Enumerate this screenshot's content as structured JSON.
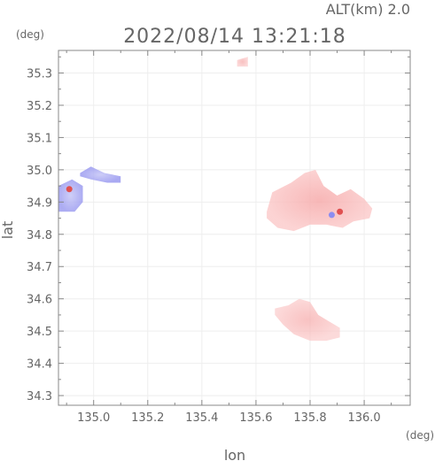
{
  "chart_data": {
    "type": "heatmap",
    "title": "2022/08/14 13:21:18",
    "annotation_top_right": "ALT(km)  2.0",
    "xlabel": "lon",
    "ylabel": "lat",
    "x_unit": "(deg)",
    "y_unit": "(deg)",
    "xlim": [
      134.87,
      136.17
    ],
    "ylim": [
      34.27,
      35.37
    ],
    "x_ticks": [
      135.0,
      135.2,
      135.4,
      135.6,
      135.8,
      136.0
    ],
    "x_tick_labels": [
      "135.0",
      "135.2",
      "135.4",
      "135.6",
      "135.8",
      "136.0"
    ],
    "y_ticks": [
      34.3,
      34.4,
      34.5,
      34.6,
      34.7,
      34.8,
      34.9,
      35.0,
      35.1,
      35.2,
      35.3
    ],
    "y_tick_labels": [
      "34.3",
      "34.4",
      "34.5",
      "34.6",
      "34.7",
      "34.8",
      "34.9",
      "35.0",
      "35.1",
      "35.2",
      "35.3"
    ],
    "grid": true,
    "colors": {
      "positive": "#f4a0a0",
      "strong_positive": "#e05050",
      "negative": "#8c8cf0",
      "axis": "#888888"
    },
    "regions": [
      {
        "sign": "positive",
        "strength": 0.55,
        "outline": [
          [
            135.64,
            34.87
          ],
          [
            135.66,
            34.93
          ],
          [
            135.73,
            34.96
          ],
          [
            135.78,
            34.99
          ],
          [
            135.82,
            35.0
          ],
          [
            135.85,
            34.95
          ],
          [
            135.9,
            34.92
          ],
          [
            135.95,
            34.94
          ],
          [
            136.0,
            34.91
          ],
          [
            136.03,
            34.88
          ],
          [
            136.02,
            34.85
          ],
          [
            135.96,
            34.84
          ],
          [
            135.92,
            34.82
          ],
          [
            135.86,
            34.83
          ],
          [
            135.8,
            34.83
          ],
          [
            135.74,
            34.81
          ],
          [
            135.68,
            34.82
          ],
          [
            135.64,
            34.85
          ]
        ]
      },
      {
        "sign": "positive",
        "strength": 0.3,
        "outline": [
          [
            135.67,
            34.57
          ],
          [
            135.72,
            34.58
          ],
          [
            135.76,
            34.6
          ],
          [
            135.8,
            34.59
          ],
          [
            135.83,
            34.55
          ],
          [
            135.87,
            34.53
          ],
          [
            135.91,
            34.51
          ],
          [
            135.91,
            34.48
          ],
          [
            135.86,
            34.47
          ],
          [
            135.8,
            34.47
          ],
          [
            135.74,
            34.49
          ],
          [
            135.7,
            34.52
          ],
          [
            135.67,
            34.55
          ]
        ]
      },
      {
        "sign": "positive",
        "strength": 0.35,
        "outline": [
          [
            135.53,
            35.34
          ],
          [
            135.57,
            35.35
          ],
          [
            135.57,
            35.32
          ],
          [
            135.53,
            35.32
          ]
        ]
      },
      {
        "sign": "negative",
        "strength": 0.6,
        "outline": [
          [
            134.95,
            34.99
          ],
          [
            134.99,
            35.01
          ],
          [
            135.04,
            34.99
          ],
          [
            135.1,
            34.98
          ],
          [
            135.1,
            34.96
          ],
          [
            135.05,
            34.96
          ],
          [
            134.99,
            34.97
          ],
          [
            134.95,
            34.98
          ]
        ]
      },
      {
        "sign": "negative",
        "strength": 0.55,
        "outline": [
          [
            134.87,
            34.95
          ],
          [
            134.92,
            34.97
          ],
          [
            134.96,
            34.95
          ],
          [
            134.96,
            34.9
          ],
          [
            134.93,
            34.87
          ],
          [
            134.87,
            34.87
          ]
        ]
      }
    ],
    "hotspots": [
      {
        "x": 135.91,
        "y": 34.87,
        "sign": "strong_positive"
      },
      {
        "x": 135.88,
        "y": 34.86,
        "sign": "negative"
      },
      {
        "x": 134.91,
        "y": 34.94,
        "sign": "strong_positive"
      }
    ]
  }
}
